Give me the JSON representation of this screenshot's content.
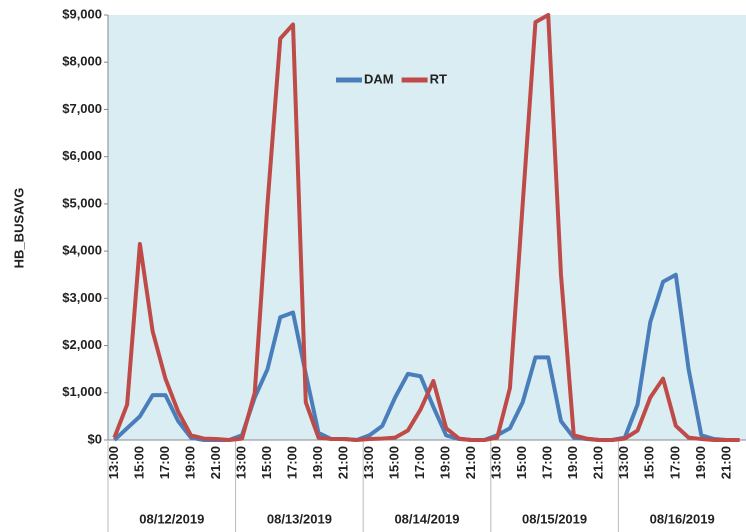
{
  "chart_data": {
    "type": "line",
    "y_label": "HB_BUSAVG",
    "groups": [
      "08/12/2019",
      "08/13/2019",
      "08/14/2019",
      "08/15/2019",
      "08/16/2019"
    ],
    "categories": [
      "13:00",
      null,
      "15:00",
      null,
      "17:00",
      null,
      "19:00",
      null,
      "21:00",
      null,
      "13:00",
      null,
      "15:00",
      null,
      "17:00",
      null,
      "19:00",
      null,
      "21:00",
      null,
      "13:00",
      null,
      "15:00",
      null,
      "17:00",
      null,
      "19:00",
      null,
      "21:00",
      null,
      "13:00",
      null,
      "15:00",
      null,
      "17:00",
      null,
      "19:00",
      null,
      "21:00",
      null,
      "13:00",
      null,
      "15:00",
      null,
      "17:00",
      null,
      "19:00",
      null,
      "21:00",
      null
    ],
    "series": [
      {
        "name": "DAM",
        "color": "#4a7ebb",
        "values": [
          0,
          250,
          500,
          950,
          950,
          400,
          50,
          0,
          0,
          0,
          100,
          900,
          1500,
          2600,
          2700,
          1400,
          150,
          20,
          20,
          0,
          100,
          300,
          900,
          1400,
          1350,
          700,
          100,
          20,
          0,
          0,
          100,
          250,
          800,
          1750,
          1750,
          400,
          50,
          20,
          0,
          0,
          50,
          750,
          2500,
          3350,
          3500,
          1500,
          100,
          20,
          0,
          0
        ]
      },
      {
        "name": "RT",
        "color": "#be4b48",
        "values": [
          50,
          750,
          4150,
          2300,
          1300,
          600,
          100,
          30,
          20,
          0,
          30,
          1000,
          5000,
          8500,
          8800,
          800,
          50,
          20,
          20,
          0,
          20,
          30,
          50,
          200,
          650,
          1250,
          250,
          30,
          0,
          0,
          50,
          1100,
          5000,
          8850,
          9000,
          3500,
          100,
          30,
          0,
          0,
          30,
          200,
          900,
          1300,
          300,
          50,
          20,
          0,
          0,
          0
        ]
      }
    ],
    "ylim": [
      0,
      9000
    ],
    "yticks": [
      {
        "value": 0,
        "label": "$0"
      },
      {
        "value": 1000,
        "label": "$1,000"
      },
      {
        "value": 2000,
        "label": "$2,000"
      },
      {
        "value": 3000,
        "label": "$3,000"
      },
      {
        "value": 4000,
        "label": "$4,000"
      },
      {
        "value": 5000,
        "label": "$5,000"
      },
      {
        "value": 6000,
        "label": "$6,000"
      },
      {
        "value": 7000,
        "label": "$7,000"
      },
      {
        "value": 8000,
        "label": "$8,000"
      },
      {
        "value": 9000,
        "label": "$9,000"
      }
    ],
    "plot_background": "#daedf3",
    "grid": false
  }
}
